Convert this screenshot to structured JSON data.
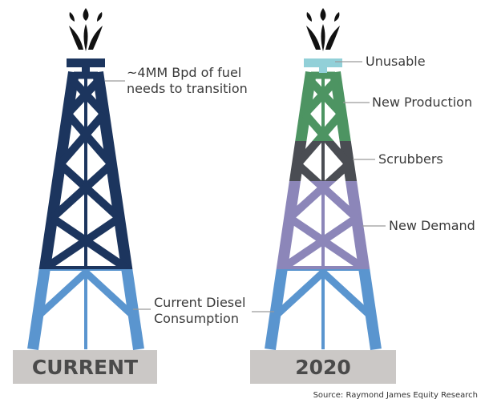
{
  "left_tower": {
    "annotation": [
      "~4MM Bpd of fuel",
      "needs to transition"
    ],
    "base_label": "CURRENT"
  },
  "right_tower": {
    "labels": [
      "Unusable",
      "New Production",
      "Scrubbers",
      "New Demand"
    ],
    "base_label": "2020"
  },
  "shared_label": [
    "Current Diesel",
    "Consumption"
  ],
  "source": "Source: Raymond James Equity Research"
}
